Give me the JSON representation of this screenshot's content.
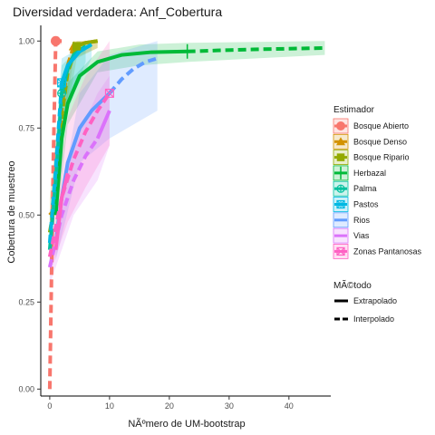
{
  "chart_data": {
    "type": "line",
    "title": "Diversidad verdadera: Anf_Cobertura",
    "xlabel": "NÃºmero de UM-bootstrap",
    "ylabel": "Cobertura de muestreo",
    "xlim": [
      -1.5,
      47
    ],
    "ylim": [
      -0.02,
      1.045
    ],
    "x_ticks": [
      0,
      10,
      20,
      30,
      40
    ],
    "y_ticks": [
      0.0,
      0.25,
      0.5,
      0.75,
      1.0
    ],
    "y_tick_labels": [
      "0.00",
      "0.25",
      "0.50",
      "0.75",
      "1.00"
    ],
    "grid": false,
    "legend_placement": "right",
    "legend_estimator_title": "Estimador",
    "legend_method_title": "MÃ©todo",
    "methods": [
      {
        "name": "Extrapolado",
        "dash": "solid"
      },
      {
        "name": "Interpolado",
        "dash": "dashed"
      }
    ],
    "series": [
      {
        "name": "Bosque Abierto",
        "color": "#F8766D",
        "shape": "circle",
        "observed": [
          1,
          1.0
        ],
        "interp": [
          [
            0,
            0.0
          ],
          [
            0.3,
            0.33
          ],
          [
            0.6,
            0.66
          ],
          [
            1,
            1.0
          ]
        ],
        "extrap": [
          [
            1,
            1.0
          ],
          [
            2,
            1.0
          ]
        ],
        "ci": [
          [
            0,
            0.0,
            0.0
          ],
          [
            1,
            0.99,
            1.0
          ],
          [
            2,
            0.99,
            1.0
          ]
        ]
      },
      {
        "name": "Bosque Denso",
        "color": "#D39200",
        "shape": "triangle",
        "observed": [
          4,
          0.985
        ],
        "interp": [
          [
            0,
            0.5
          ],
          [
            1,
            0.52
          ],
          [
            2,
            0.8
          ],
          [
            3,
            0.93
          ],
          [
            4,
            0.985
          ]
        ],
        "extrap": [
          [
            4,
            0.985
          ],
          [
            6,
            0.995
          ],
          [
            8,
            1.0
          ]
        ],
        "ci": [
          [
            0,
            0.45,
            0.55
          ],
          [
            2,
            0.72,
            0.88
          ],
          [
            4,
            0.95,
            1.0
          ],
          [
            8,
            0.98,
            1.0
          ]
        ]
      },
      {
        "name": "Bosque Ripario",
        "color": "#93AA00",
        "shape": "square",
        "observed": [
          4.5,
          0.985
        ],
        "interp": [
          [
            0,
            0.45
          ],
          [
            1,
            0.55
          ],
          [
            2,
            0.78
          ],
          [
            3,
            0.91
          ],
          [
            4.5,
            0.985
          ]
        ],
        "extrap": [
          [
            4.5,
            0.985
          ],
          [
            6,
            0.995
          ],
          [
            8,
            1.0
          ]
        ],
        "ci": [
          [
            0,
            0.4,
            0.5
          ],
          [
            2,
            0.7,
            0.86
          ],
          [
            4.5,
            0.95,
            1.0
          ],
          [
            8,
            0.98,
            1.0
          ]
        ]
      },
      {
        "name": "Herbazal",
        "color": "#00BA38",
        "shape": "plus",
        "observed": [
          23,
          0.97
        ],
        "interp": [
          [
            23,
            0.97
          ],
          [
            28,
            0.973
          ],
          [
            34,
            0.976
          ],
          [
            40,
            0.978
          ],
          [
            46,
            0.98
          ]
        ],
        "extrap": [
          [
            1,
            0.5
          ],
          [
            2,
            0.72
          ],
          [
            3,
            0.82
          ],
          [
            5,
            0.9
          ],
          [
            8,
            0.94
          ],
          [
            12,
            0.96
          ],
          [
            17,
            0.968
          ],
          [
            23,
            0.97
          ]
        ],
        "ci": [
          [
            1,
            0.45,
            0.55
          ],
          [
            3,
            0.76,
            0.88
          ],
          [
            8,
            0.91,
            0.97
          ],
          [
            15,
            0.93,
            0.99
          ],
          [
            23,
            0.94,
            0.995
          ],
          [
            46,
            0.96,
            1.0
          ]
        ]
      },
      {
        "name": "Palma",
        "color": "#00C19F",
        "shape": "circle-cross",
        "observed": [
          2,
          0.85
        ],
        "interp": [
          [
            0,
            0.4
          ],
          [
            1,
            0.6
          ],
          [
            2,
            0.85
          ]
        ],
        "extrap": [
          [
            2,
            0.85
          ],
          [
            3,
            0.92
          ],
          [
            4,
            0.96
          ],
          [
            6,
            0.985
          ]
        ],
        "ci": [
          [
            0,
            0.35,
            0.45
          ],
          [
            2,
            0.75,
            0.93
          ],
          [
            6,
            0.94,
            1.0
          ]
        ]
      },
      {
        "name": "Pastos",
        "color": "#00B9E3",
        "shape": "square-cross",
        "observed": [
          2,
          0.88
        ],
        "interp": [
          [
            0,
            0.42
          ],
          [
            1,
            0.63
          ],
          [
            2,
            0.88
          ]
        ],
        "extrap": [
          [
            2,
            0.88
          ],
          [
            3,
            0.93
          ],
          [
            5,
            0.97
          ],
          [
            7,
            0.99
          ]
        ],
        "ci": [
          [
            0,
            0.36,
            0.48
          ],
          [
            2,
            0.78,
            0.95
          ],
          [
            7,
            0.95,
            1.0
          ]
        ]
      },
      {
        "name": "Rios",
        "color": "#619CFF",
        "shape": "none",
        "observed": [
          10,
          0.85
        ],
        "interp": [
          [
            10,
            0.85
          ],
          [
            12,
            0.89
          ],
          [
            14,
            0.92
          ],
          [
            16,
            0.94
          ],
          [
            18,
            0.95
          ]
        ],
        "extrap": [
          [
            1,
            0.42
          ],
          [
            2,
            0.55
          ],
          [
            3,
            0.65
          ],
          [
            5,
            0.75
          ],
          [
            7,
            0.8
          ],
          [
            10,
            0.85
          ]
        ],
        "ci": [
          [
            1,
            0.37,
            0.47
          ],
          [
            5,
            0.65,
            0.85
          ],
          [
            10,
            0.72,
            0.96
          ],
          [
            18,
            0.8,
            1.0
          ]
        ]
      },
      {
        "name": "Vias",
        "color": "#DB72FB",
        "shape": "none",
        "observed": [
          8,
          0.72
        ],
        "interp": [
          [
            0,
            0.35
          ],
          [
            2,
            0.5
          ],
          [
            4,
            0.6
          ],
          [
            6,
            0.67
          ],
          [
            8,
            0.72
          ]
        ],
        "extrap": [
          [
            8,
            0.72
          ],
          [
            9,
            0.76
          ],
          [
            10,
            0.8
          ]
        ],
        "ci": [
          [
            0,
            0.3,
            0.4
          ],
          [
            4,
            0.5,
            0.7
          ],
          [
            8,
            0.6,
            0.85
          ],
          [
            10,
            0.7,
            0.9
          ]
        ]
      },
      {
        "name": "Zonas Pantanosas",
        "color": "#FF61C3",
        "shape": "square-x",
        "observed": [
          10,
          0.85
        ],
        "interp": [
          [
            0,
            0.38
          ],
          [
            2,
            0.55
          ],
          [
            4,
            0.66
          ],
          [
            6,
            0.74
          ],
          [
            8,
            0.8
          ],
          [
            10,
            0.85
          ]
        ],
        "extrap": [
          [
            1,
            0.4
          ],
          [
            2,
            0.55
          ],
          [
            3,
            0.62
          ]
        ],
        "ci": [
          [
            0,
            0.33,
            0.43
          ],
          [
            3,
            0.48,
            0.78
          ],
          [
            6,
            0.58,
            0.9
          ],
          [
            10,
            0.7,
            1.0
          ]
        ]
      }
    ]
  }
}
